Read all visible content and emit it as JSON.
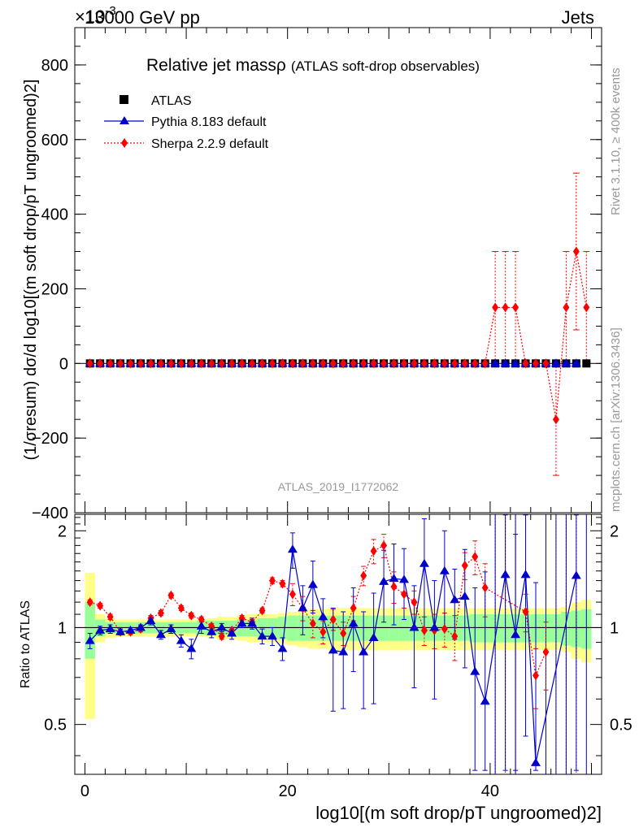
{
  "header": {
    "energy_label": "13000 GeV pp",
    "process_label": "Jets",
    "exponent_label": "×10",
    "exponent_power": "-3"
  },
  "side_labels": {
    "rivet": "Rivet 3.1.10, ≥ 400k events",
    "mcplots": "mcplots.cern.ch [arXiv:1306.3436]"
  },
  "colors": {
    "atlas": "#000000",
    "pythia": "#0000cc",
    "sherpa": "#ff0000",
    "band_inner": "#99ff99",
    "band_outer": "#ffff88"
  },
  "chart_data": [
    {
      "type": "scatter",
      "title": "Relative jet massρ",
      "subtitle": "(ATLAS soft-drop observables)",
      "watermark": "ATLAS_2019_I1772062",
      "ylabel": "(1/σresum) dσ/d log10[(m soft drop/pT ungroomed)2]",
      "ylim": [
        -400,
        900
      ],
      "xlim": [
        -1,
        51
      ],
      "yticks": [
        -400,
        -200,
        0,
        200,
        400,
        600,
        800
      ],
      "ytick_labels": [
        "−400",
        "−200",
        "0",
        "200",
        "400",
        "600",
        "800"
      ],
      "legend_position": "top-left",
      "legend": [
        "ATLAS",
        "Pythia 8.183 default",
        "Sherpa 2.2.9 default"
      ],
      "x": [
        0.5,
        1.5,
        2.5,
        3.5,
        4.5,
        5.5,
        6.5,
        7.5,
        8.5,
        9.5,
        10.5,
        11.5,
        12.5,
        13.5,
        14.5,
        15.5,
        16.5,
        17.5,
        18.5,
        19.5,
        20.5,
        21.5,
        22.5,
        23.5,
        24.5,
        25.5,
        26.5,
        27.5,
        28.5,
        29.5,
        30.5,
        31.5,
        32.5,
        33.5,
        34.5,
        35.5,
        36.5,
        37.5,
        38.5,
        39.5,
        40.5,
        41.5,
        42.5,
        43.5,
        44.5,
        45.5,
        46.5,
        47.5,
        48.5,
        49.5
      ],
      "series": [
        {
          "name": "ATLAS",
          "values": [
            0,
            0,
            0,
            0,
            0,
            0,
            0,
            0,
            0,
            0,
            0,
            0,
            0,
            0,
            0,
            0,
            0,
            0,
            0,
            0,
            0,
            0,
            0,
            0,
            0,
            0,
            0,
            0,
            0,
            0,
            0,
            0,
            0,
            0,
            0,
            0,
            0,
            0,
            0,
            0,
            0,
            0,
            0,
            0,
            0,
            0,
            0,
            0,
            0,
            0
          ]
        },
        {
          "name": "Pythia 8.183 default",
          "values": [
            0,
            0,
            0,
            0,
            0,
            0,
            0,
            0,
            0,
            0,
            0,
            0,
            0,
            0,
            0,
            0,
            0,
            0,
            0,
            0,
            0,
            0,
            0,
            0,
            0,
            0,
            0,
            0,
            0,
            0,
            0,
            0,
            0,
            0,
            0,
            0,
            0,
            0,
            0,
            0,
            0,
            0,
            0,
            0,
            0,
            0,
            0,
            0,
            0,
            null
          ]
        },
        {
          "name": "Sherpa 2.2.9 default",
          "values": [
            0,
            0,
            0,
            0,
            0,
            0,
            0,
            0,
            0,
            0,
            0,
            0,
            0,
            0,
            0,
            0,
            0,
            0,
            0,
            0,
            0,
            0,
            0,
            0,
            0,
            0,
            0,
            0,
            0,
            0,
            0,
            0,
            0,
            0,
            0,
            0,
            0,
            0,
            0,
            0,
            150,
            150,
            150,
            0,
            0,
            0,
            -150,
            150,
            300,
            150
          ],
          "errors": [
            0,
            0,
            0,
            0,
            0,
            0,
            0,
            0,
            0,
            0,
            0,
            0,
            0,
            0,
            0,
            0,
            0,
            0,
            0,
            0,
            0,
            0,
            0,
            0,
            0,
            0,
            0,
            0,
            0,
            0,
            0,
            0,
            0,
            0,
            0,
            0,
            0,
            0,
            0,
            0,
            150,
            150,
            150,
            0,
            0,
            0,
            150,
            150,
            210,
            150
          ]
        }
      ]
    },
    {
      "type": "scatter",
      "ylabel": "Ratio to ATLAS",
      "xlabel": "log10[(m soft drop/pT ungroomed)2]",
      "ylim": [
        0.35,
        2.25
      ],
      "xlim": [
        -1,
        51
      ],
      "reference_line": 1,
      "xticks": [
        0,
        20,
        40
      ],
      "xtick_labels": [
        "0",
        "20",
        "40"
      ],
      "yticks": [
        0.5,
        1,
        2
      ],
      "ytick_labels": [
        "0.5",
        "1",
        "2"
      ],
      "x": [
        0.5,
        1.5,
        2.5,
        3.5,
        4.5,
        5.5,
        6.5,
        7.5,
        8.5,
        9.5,
        10.5,
        11.5,
        12.5,
        13.5,
        14.5,
        15.5,
        16.5,
        17.5,
        18.5,
        19.5,
        20.5,
        21.5,
        22.5,
        23.5,
        24.5,
        25.5,
        26.5,
        27.5,
        28.5,
        29.5,
        30.5,
        31.5,
        32.5,
        33.5,
        34.5,
        35.5,
        36.5,
        37.5,
        38.5,
        39.5,
        40.5,
        41.5,
        42.5,
        43.5,
        44.5,
        45.5,
        46.5,
        47.5,
        48.5,
        49.5
      ],
      "band_inner": [
        0.2,
        0.06,
        0.04,
        0.04,
        0.04,
        0.04,
        0.04,
        0.04,
        0.04,
        0.04,
        0.04,
        0.05,
        0.05,
        0.05,
        0.05,
        0.06,
        0.06,
        0.07,
        0.07,
        0.08,
        0.09,
        0.09,
        0.09,
        0.09,
        0.09,
        0.09,
        0.09,
        0.09,
        0.09,
        0.09,
        0.09,
        0.09,
        0.09,
        0.09,
        0.09,
        0.09,
        0.09,
        0.09,
        0.1,
        0.1,
        0.1,
        0.1,
        0.1,
        0.1,
        0.1,
        0.1,
        0.1,
        0.12,
        0.13,
        0.14
      ],
      "band_outer": [
        0.48,
        0.1,
        0.07,
        0.06,
        0.06,
        0.06,
        0.06,
        0.06,
        0.06,
        0.06,
        0.06,
        0.06,
        0.07,
        0.08,
        0.08,
        0.09,
        0.1,
        0.1,
        0.1,
        0.11,
        0.12,
        0.13,
        0.14,
        0.14,
        0.15,
        0.15,
        0.15,
        0.15,
        0.15,
        0.15,
        0.15,
        0.15,
        0.15,
        0.15,
        0.15,
        0.15,
        0.15,
        0.15,
        0.15,
        0.15,
        0.15,
        0.15,
        0.15,
        0.15,
        0.15,
        0.15,
        0.15,
        0.16,
        0.2,
        0.22
      ],
      "series": [
        {
          "name": "Pythia 8.183 default",
          "values": [
            0.91,
            0.98,
            0.99,
            0.97,
            0.98,
            1.0,
            1.05,
            0.95,
            0.99,
            0.91,
            0.86,
            1.01,
            0.97,
            1.0,
            0.96,
            1.03,
            1.03,
            0.94,
            0.94,
            0.86,
            1.75,
            1.15,
            1.36,
            1.08,
            0.85,
            0.84,
            1.03,
            0.84,
            0.93,
            1.39,
            1.42,
            1.41,
            1.0,
            1.58,
            1.0,
            1.5,
            1.22,
            1.25,
            0.73,
            0.59,
            null,
            1.46,
            0.95,
            1.46,
            0.38,
            null,
            null,
            null,
            1.45,
            null
          ],
          "errors": [
            0.05,
            0.03,
            0.03,
            0.02,
            0.02,
            0.02,
            0.03,
            0.03,
            0.03,
            0.04,
            0.06,
            0.05,
            0.04,
            0.03,
            0.04,
            0.03,
            0.04,
            0.05,
            0.06,
            0.07,
            0.22,
            0.2,
            0.25,
            0.15,
            0.3,
            0.28,
            0.3,
            0.28,
            0.35,
            0.35,
            0.4,
            0.35,
            0.35,
            0.6,
            0.4,
            0.5,
            0.3,
            0.5,
            0.6,
            0.9,
            0,
            1.2,
            1.0,
            1.0,
            1.0,
            0,
            0,
            0,
            1.1,
            0
          ]
        },
        {
          "name": "Sherpa 2.2.9 default",
          "values": [
            1.2,
            1.17,
            1.08,
            0.97,
            0.97,
            0.99,
            1.07,
            1.11,
            1.26,
            1.15,
            1.09,
            1.06,
            1.01,
            0.94,
            0.98,
            1.07,
            1.04,
            1.13,
            1.4,
            1.37,
            1.27,
            1.15,
            1.03,
            0.97,
            1.06,
            0.96,
            1.15,
            1.45,
            1.73,
            1.8,
            1.34,
            1.27,
            1.2,
            0.98,
            0.98,
            0.99,
            0.94,
            1.56,
            1.66,
            1.33,
            null,
            null,
            null,
            1.12,
            0.71,
            0.84,
            null,
            null,
            null,
            null
          ],
          "errors": [
            0.02,
            0.02,
            0.02,
            0.02,
            0.02,
            0.02,
            0.02,
            0.02,
            0.02,
            0.02,
            0.02,
            0.02,
            0.02,
            0.02,
            0.02,
            0.02,
            0.02,
            0.02,
            0.03,
            0.03,
            0.1,
            0.1,
            0.1,
            0.08,
            0.08,
            0.08,
            0.1,
            0.1,
            0.15,
            0.15,
            0.15,
            0.12,
            0.1,
            0.1,
            0.12,
            0.12,
            0.15,
            0.15,
            0.2,
            0.25,
            0,
            0,
            0,
            0.15,
            0.15,
            0.2,
            0,
            0,
            0,
            0
          ]
        }
      ]
    }
  ]
}
